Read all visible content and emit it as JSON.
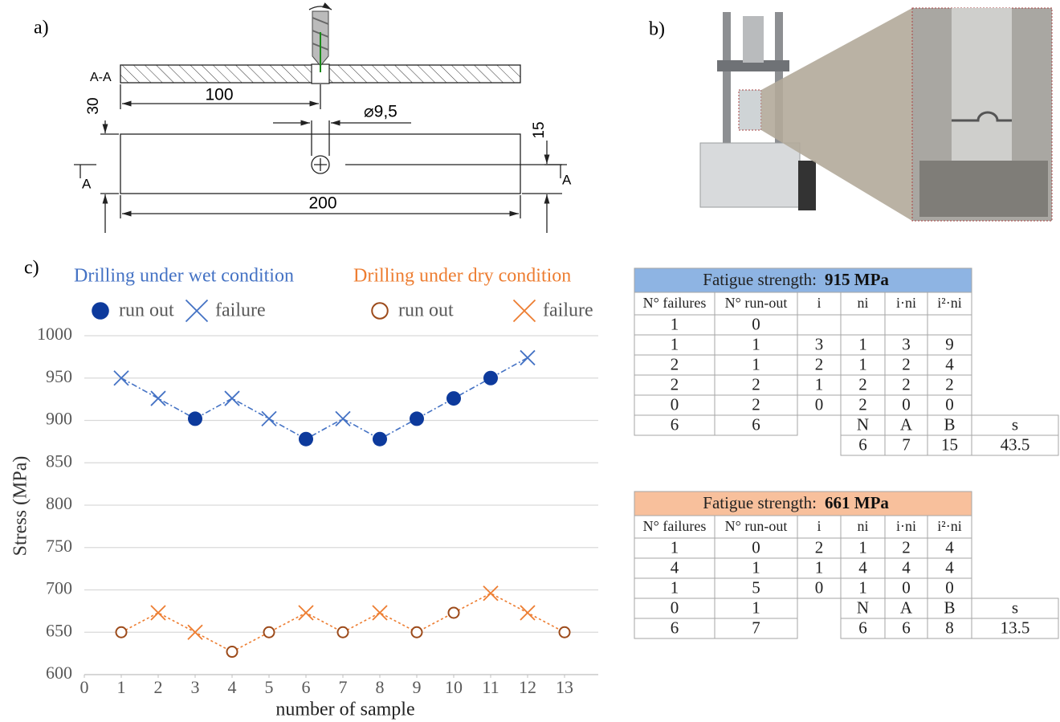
{
  "drawing": {
    "label": "a)",
    "section": "A-A",
    "dimensions": [
      "100",
      "30",
      "⌀9,5",
      "15",
      "200"
    ],
    "section_marks": [
      "A",
      "A"
    ]
  },
  "photo": {
    "label": "b)"
  },
  "chart_data": {
    "type": "line",
    "label": "c)",
    "x": [
      1,
      2,
      3,
      4,
      5,
      6,
      7,
      8,
      9,
      10,
      11,
      12,
      13
    ],
    "series": [
      {
        "name": "Drilling under wet condition",
        "color": "#4472c4",
        "line_style": "dashdot",
        "values": [
          950,
          926,
          902,
          926,
          902,
          878,
          902,
          878,
          902,
          926,
          950,
          974,
          null
        ],
        "markers": [
          "cross",
          "cross",
          "dot",
          "cross",
          "cross",
          "dot",
          "cross",
          "dot",
          "dot",
          "dot",
          "dot",
          "cross",
          null
        ],
        "legend": [
          {
            "marker": "dot",
            "label": "run out",
            "color": "#0d3a9c"
          },
          {
            "marker": "cross",
            "label": "failure",
            "color": "#4472c4"
          }
        ]
      },
      {
        "name": "Drilling under dry condition",
        "color": "#ed7d31",
        "line_style": "dotted",
        "values": [
          650,
          673,
          650,
          627,
          650,
          673,
          650,
          673,
          650,
          673,
          696,
          673,
          650
        ],
        "markers": [
          "ring",
          "cross",
          "cross",
          "ring",
          "ring",
          "cross",
          "ring",
          "cross",
          "ring",
          "ring",
          "cross",
          "cross",
          "ring"
        ],
        "legend": [
          {
            "marker": "ring",
            "label": "run out",
            "color": "#9c4a1a"
          },
          {
            "marker": "cross",
            "label": "failure",
            "color": "#ed7d31"
          }
        ]
      }
    ],
    "xlabel": "number of sample",
    "ylabel": "Stress (MPa)",
    "xlim": [
      0,
      14
    ],
    "xticks": [
      0,
      1,
      2,
      3,
      4,
      5,
      6,
      7,
      8,
      9,
      10,
      11,
      12,
      13
    ],
    "ylim": [
      600,
      1000
    ],
    "yticks": [
      600,
      650,
      700,
      750,
      800,
      850,
      900,
      950,
      1000
    ],
    "grid": true
  },
  "tables": [
    {
      "title": "Fatigue strength:",
      "value": "915 MPa",
      "color": "#8eb4e3",
      "columns": [
        "N° failures",
        "N° run-out",
        "i",
        "ni",
        "i·ni",
        "i²·ni"
      ],
      "rows": [
        [
          1,
          0,
          null,
          null,
          null,
          null
        ],
        [
          1,
          1,
          3,
          1,
          3,
          9
        ],
        [
          2,
          1,
          2,
          1,
          2,
          4
        ],
        [
          2,
          2,
          1,
          2,
          2,
          2
        ],
        [
          0,
          2,
          0,
          2,
          0,
          0
        ]
      ],
      "lower_rows": [
        [
          6,
          6
        ]
      ],
      "summary_columns": [
        "N",
        "A",
        "B",
        "s"
      ],
      "summary": [
        6,
        7,
        15,
        43.5
      ]
    },
    {
      "title": "Fatigue strength:",
      "value": "661 MPa",
      "color": "#f8c09c",
      "columns": [
        "N° failures",
        "N° run-out",
        "i",
        "ni",
        "i·ni",
        "i²·ni"
      ],
      "rows": [
        [
          1,
          0,
          2,
          1,
          2,
          4
        ],
        [
          4,
          1,
          1,
          4,
          4,
          4
        ],
        [
          1,
          5,
          0,
          1,
          0,
          0
        ]
      ],
      "lower_rows": [
        [
          0,
          1
        ],
        [
          6,
          7
        ]
      ],
      "summary_columns": [
        "N",
        "A",
        "B",
        "s"
      ],
      "summary": [
        6,
        6,
        8,
        13.5
      ]
    }
  ]
}
